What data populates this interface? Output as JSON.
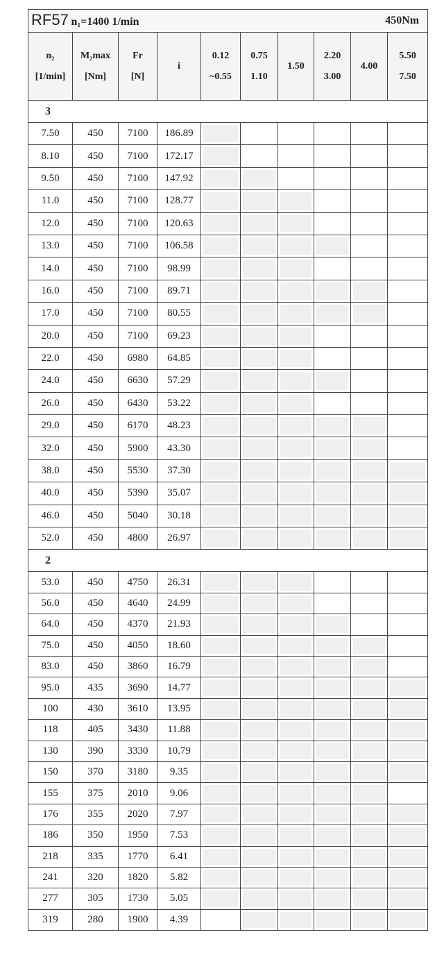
{
  "title": {
    "model": "RF57",
    "input_speed": "n₁=1400 1/min",
    "torque": "450Nm"
  },
  "headers": [
    [
      "n₂",
      "[1/min]"
    ],
    [
      "M₂max",
      "[Nm]"
    ],
    [
      "Fr",
      "[N]"
    ],
    [
      "i"
    ],
    [
      "0.12",
      "~0.55"
    ],
    [
      "0.75",
      "1.10"
    ],
    [
      "1.50"
    ],
    [
      "2.20",
      "3.00"
    ],
    [
      "4.00"
    ],
    [
      "5.50",
      "7.50"
    ]
  ],
  "sections": [
    {
      "label": "3",
      "rows": [
        {
          "n2": "7.50",
          "m2": "450",
          "fr": "7100",
          "i": "186.89",
          "shaded": [
            1,
            0,
            0,
            0,
            0,
            0
          ]
        },
        {
          "n2": "8.10",
          "m2": "450",
          "fr": "7100",
          "i": "172.17",
          "shaded": [
            1,
            0,
            0,
            0,
            0,
            0
          ]
        },
        {
          "n2": "9.50",
          "m2": "450",
          "fr": "7100",
          "i": "147.92",
          "shaded": [
            1,
            1,
            0,
            0,
            0,
            0
          ]
        },
        {
          "n2": "11.0",
          "m2": "450",
          "fr": "7100",
          "i": "128.77",
          "shaded": [
            1,
            1,
            1,
            0,
            0,
            0
          ]
        },
        {
          "n2": "12.0",
          "m2": "450",
          "fr": "7100",
          "i": "120.63",
          "shaded": [
            1,
            1,
            1,
            0,
            0,
            0
          ]
        },
        {
          "n2": "13.0",
          "m2": "450",
          "fr": "7100",
          "i": "106.58",
          "shaded": [
            1,
            1,
            1,
            1,
            0,
            0
          ]
        },
        {
          "n2": "14.0",
          "m2": "450",
          "fr": "7100",
          "i": "98.99",
          "shaded": [
            1,
            1,
            1,
            0,
            0,
            0
          ]
        },
        {
          "n2": "16.0",
          "m2": "450",
          "fr": "7100",
          "i": "89.71",
          "shaded": [
            1,
            1,
            1,
            1,
            1,
            0
          ]
        },
        {
          "n2": "17.0",
          "m2": "450",
          "fr": "7100",
          "i": "80.55",
          "shaded": [
            1,
            1,
            1,
            1,
            1,
            0
          ]
        },
        {
          "n2": "20.0",
          "m2": "450",
          "fr": "7100",
          "i": "69.23",
          "shaded": [
            1,
            1,
            1,
            0,
            0,
            0
          ]
        },
        {
          "n2": "22.0",
          "m2": "450",
          "fr": "6980",
          "i": "64.85",
          "shaded": [
            1,
            1,
            1,
            0,
            0,
            0
          ]
        },
        {
          "n2": "24.0",
          "m2": "450",
          "fr": "6630",
          "i": "57.29",
          "shaded": [
            1,
            1,
            1,
            1,
            0,
            0
          ]
        },
        {
          "n2": "26.0",
          "m2": "450",
          "fr": "6430",
          "i": "53.22",
          "shaded": [
            1,
            1,
            1,
            0,
            0,
            0
          ]
        },
        {
          "n2": "29.0",
          "m2": "450",
          "fr": "6170",
          "i": "48.23",
          "shaded": [
            1,
            1,
            1,
            1,
            1,
            0
          ]
        },
        {
          "n2": "32.0",
          "m2": "450",
          "fr": "5900",
          "i": "43.30",
          "shaded": [
            1,
            1,
            1,
            1,
            1,
            0
          ]
        },
        {
          "n2": "38.0",
          "m2": "450",
          "fr": "5530",
          "i": "37.30",
          "shaded": [
            1,
            1,
            1,
            1,
            1,
            1
          ]
        },
        {
          "n2": "40.0",
          "m2": "450",
          "fr": "5390",
          "i": "35.07",
          "shaded": [
            1,
            1,
            1,
            1,
            1,
            1
          ]
        },
        {
          "n2": "46.0",
          "m2": "450",
          "fr": "5040",
          "i": "30.18",
          "shaded": [
            1,
            1,
            1,
            1,
            1,
            1
          ]
        },
        {
          "n2": "52.0",
          "m2": "450",
          "fr": "4800",
          "i": "26.97",
          "shaded": [
            1,
            1,
            1,
            1,
            1,
            1
          ]
        }
      ]
    },
    {
      "label": "2",
      "rows": [
        {
          "n2": "53.0",
          "m2": "450",
          "fr": "4750",
          "i": "26.31",
          "shaded": [
            1,
            1,
            1,
            0,
            0,
            0
          ]
        },
        {
          "n2": "56.0",
          "m2": "450",
          "fr": "4640",
          "i": "24.99",
          "shaded": [
            1,
            1,
            1,
            0,
            0,
            0
          ]
        },
        {
          "n2": "64.0",
          "m2": "450",
          "fr": "4370",
          "i": "21.93",
          "shaded": [
            1,
            1,
            1,
            1,
            0,
            0
          ]
        },
        {
          "n2": "75.0",
          "m2": "450",
          "fr": "4050",
          "i": "18.60",
          "shaded": [
            1,
            1,
            1,
            1,
            1,
            0
          ]
        },
        {
          "n2": "83.0",
          "m2": "450",
          "fr": "3860",
          "i": "16.79",
          "shaded": [
            1,
            1,
            1,
            1,
            1,
            0
          ]
        },
        {
          "n2": "95.0",
          "m2": "435",
          "fr": "3690",
          "i": "14.77",
          "shaded": [
            1,
            1,
            1,
            1,
            1,
            1
          ]
        },
        {
          "n2": "100",
          "m2": "430",
          "fr": "3610",
          "i": "13.95",
          "shaded": [
            1,
            1,
            1,
            1,
            1,
            1
          ]
        },
        {
          "n2": "118",
          "m2": "405",
          "fr": "3430",
          "i": "11.88",
          "shaded": [
            1,
            1,
            1,
            1,
            1,
            1
          ]
        },
        {
          "n2": "130",
          "m2": "390",
          "fr": "3330",
          "i": "10.79",
          "shaded": [
            1,
            1,
            1,
            1,
            1,
            1
          ]
        },
        {
          "n2": "150",
          "m2": "370",
          "fr": "3180",
          "i": "9.35",
          "shaded": [
            1,
            1,
            1,
            1,
            1,
            1
          ]
        },
        {
          "n2": "155",
          "m2": "375",
          "fr": "2010",
          "i": "9.06",
          "shaded": [
            1,
            1,
            1,
            1,
            1,
            0
          ]
        },
        {
          "n2": "176",
          "m2": "355",
          "fr": "2020",
          "i": "7.97",
          "shaded": [
            1,
            1,
            1,
            1,
            1,
            1
          ]
        },
        {
          "n2": "186",
          "m2": "350",
          "fr": "1950",
          "i": "7.53",
          "shaded": [
            1,
            1,
            1,
            1,
            1,
            1
          ]
        },
        {
          "n2": "218",
          "m2": "335",
          "fr": "1770",
          "i": "6.41",
          "shaded": [
            1,
            1,
            1,
            1,
            1,
            1
          ]
        },
        {
          "n2": "241",
          "m2": "320",
          "fr": "1820",
          "i": "5.82",
          "shaded": [
            1,
            1,
            1,
            1,
            1,
            1
          ]
        },
        {
          "n2": "277",
          "m2": "305",
          "fr": "1730",
          "i": "5.05",
          "shaded": [
            1,
            1,
            1,
            1,
            1,
            1
          ]
        },
        {
          "n2": "319",
          "m2": "280",
          "fr": "1900",
          "i": "4.39",
          "shaded": [
            0,
            1,
            1,
            1,
            1,
            1
          ]
        }
      ]
    }
  ],
  "colors": {
    "shaded": "#efefef",
    "border": "#444444"
  }
}
